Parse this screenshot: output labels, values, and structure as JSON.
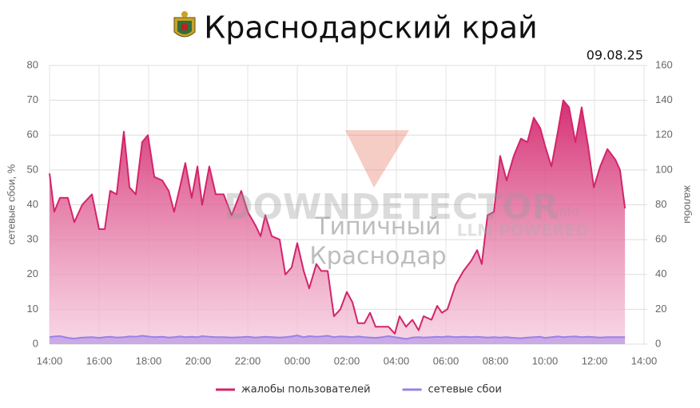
{
  "chart_data": {
    "type": "area",
    "title": "Краснодарский край",
    "date": "09.08.25",
    "ylabel": "сетевые сбои, %",
    "y2label": "жалобы",
    "watermark": {
      "brand": "DOWNDETECTOR",
      "suffix": ".info",
      "tagline": "LLM POWERED",
      "line1": "Типичный",
      "line2": "Краснодар"
    },
    "x": [
      14.0,
      14.19,
      14.42,
      14.74,
      15.0,
      15.32,
      15.71,
      16.0,
      16.23,
      16.45,
      16.71,
      17.0,
      17.23,
      17.48,
      17.74,
      17.97,
      18.23,
      18.55,
      18.81,
      19.03,
      19.26,
      19.48,
      19.74,
      19.97,
      20.16,
      20.45,
      20.71,
      21.03,
      21.35,
      21.74,
      22.0,
      22.32,
      22.52,
      22.71,
      22.97,
      23.29,
      23.52,
      23.77,
      24.0,
      24.26,
      24.48,
      24.77,
      24.97,
      25.23,
      25.48,
      25.74,
      26.0,
      26.23,
      26.45,
      26.71,
      26.94,
      27.16,
      27.42,
      27.68,
      27.94,
      28.13,
      28.39,
      28.65,
      28.9,
      29.1,
      29.42,
      29.65,
      29.84,
      30.06,
      30.39,
      30.71,
      31.03,
      31.26,
      31.45,
      31.68,
      31.94,
      32.19,
      32.45,
      32.74,
      33.03,
      33.29,
      33.55,
      33.81,
      34.0,
      34.26,
      34.52,
      34.74,
      34.97,
      35.23,
      35.48,
      35.74,
      35.97,
      36.23,
      36.52,
      36.84,
      37.03,
      37.23
    ],
    "series": [
      {
        "name": "жалобы пользователей",
        "color": "#d3246b",
        "axis": "y2",
        "values": [
          98,
          76,
          84,
          84,
          70,
          80,
          86,
          66,
          66,
          88,
          86,
          122,
          90,
          86,
          116,
          120,
          96,
          94,
          88,
          76,
          90,
          104,
          84,
          102,
          80,
          102,
          86,
          86,
          74,
          88,
          76,
          68,
          62,
          74,
          62,
          60,
          40,
          44,
          58,
          42,
          32,
          46,
          42,
          42,
          16,
          20,
          30,
          24,
          12,
          12,
          18,
          10,
          10,
          10,
          6,
          16,
          10,
          14,
          8,
          16,
          14,
          22,
          18,
          20,
          34,
          42,
          48,
          54,
          46,
          74,
          76,
          108,
          94,
          108,
          118,
          116,
          130,
          124,
          114,
          102,
          122,
          140,
          136,
          116,
          136,
          114,
          90,
          102,
          112,
          106,
          100,
          78
        ]
      },
      {
        "name": "сетевые сбои",
        "color": "#9b80e8",
        "values": [
          2,
          2.2,
          2.3,
          1.8,
          1.6,
          1.9,
          2,
          1.8,
          2,
          2.1,
          1.9,
          2,
          2.2,
          2.1,
          2.4,
          2.2,
          2,
          2.1,
          1.9,
          2,
          2.2,
          2,
          2.1,
          2,
          2.3,
          2.1,
          2,
          2,
          1.9,
          2,
          2.1,
          1.9,
          2,
          2.1,
          2,
          1.9,
          2,
          2.2,
          2.5,
          2,
          2.3,
          2.1,
          2.2,
          2.4,
          2,
          2.2,
          2.1,
          2,
          2.2,
          2,
          1.9,
          1.8,
          2,
          2.3,
          2,
          1.8,
          1.5,
          1.9,
          2,
          1.9,
          2,
          2.1,
          2,
          2.2,
          2,
          2.1,
          2,
          2.1,
          2,
          1.9,
          2,
          1.9,
          2,
          1.8,
          1.7,
          1.9,
          2,
          2.1,
          1.8,
          2,
          2.2,
          2,
          2.1,
          2.2,
          2,
          2.1,
          2,
          1.9,
          2,
          2,
          2,
          2
        ]
      }
    ],
    "xlim": [
      14,
      38
    ],
    "xticks": [
      {
        "value": 14,
        "label": "14:00"
      },
      {
        "value": 16,
        "label": "16:00"
      },
      {
        "value": 18,
        "label": "18:00"
      },
      {
        "value": 20,
        "label": "20:00"
      },
      {
        "value": 22,
        "label": "22:00"
      },
      {
        "value": 24,
        "label": "00:00"
      },
      {
        "value": 26,
        "label": "02:00"
      },
      {
        "value": 28,
        "label": "04:00"
      },
      {
        "value": 30,
        "label": "06:00"
      },
      {
        "value": 32,
        "label": "08:00"
      },
      {
        "value": 34,
        "label": "10:00"
      },
      {
        "value": 36,
        "label": "12:00"
      },
      {
        "value": 38,
        "label": "14:00"
      }
    ],
    "ylim": [
      0,
      80
    ],
    "yticks": [
      0,
      10,
      20,
      30,
      40,
      50,
      60,
      70,
      80
    ],
    "y2lim": [
      0,
      160
    ],
    "y2ticks": [
      0,
      20,
      40,
      60,
      80,
      100,
      120,
      140,
      160
    ],
    "grid": true,
    "legend": "bottom"
  }
}
